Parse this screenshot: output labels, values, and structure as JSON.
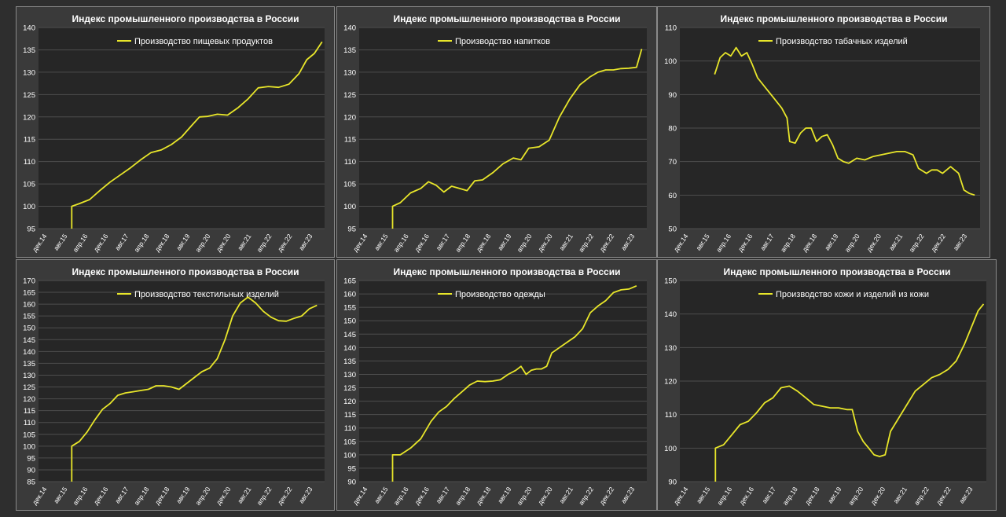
{
  "colors": {
    "page_bg": "#2e2e2e",
    "panel_bg": "#3a3a3a",
    "plot_bg": "#262626",
    "grid": "#4d4d4d",
    "line": "#e8e62a",
    "text": "#ffffff"
  },
  "chart_data": [
    {
      "type": "line",
      "title": "Индекс промышленного производства в России",
      "legend_position": "top-left",
      "grid": true,
      "x_tick_labels": [
        "дек.14",
        "авг.15",
        "апр.16",
        "дек.16",
        "авг.17",
        "апр.18",
        "дек.18",
        "авг.19",
        "апр.20",
        "дек.20",
        "авг.21",
        "апр.22",
        "дек.22",
        "авг.23"
      ],
      "x_range": [
        0,
        112
      ],
      "ylim": [
        95,
        140
      ],
      "y_ticks": [
        95,
        100,
        105,
        110,
        115,
        120,
        125,
        130,
        135,
        140
      ],
      "series": [
        {
          "name": "Производство пищевых продуктов",
          "points": [
            [
              13,
              95
            ],
            [
              13,
              100
            ],
            [
              16,
              100.6
            ],
            [
              20,
              101.5
            ],
            [
              24,
              103.5
            ],
            [
              28,
              105.4
            ],
            [
              32,
              107
            ],
            [
              36,
              108.6
            ],
            [
              40,
              110.4
            ],
            [
              44,
              112
            ],
            [
              48,
              112.6
            ],
            [
              52,
              113.8
            ],
            [
              56,
              115.5
            ],
            [
              60,
              118.1
            ],
            [
              63,
              120
            ],
            [
              66,
              120.1
            ],
            [
              70,
              120.6
            ],
            [
              74,
              120.4
            ],
            [
              78,
              122
            ],
            [
              82,
              124
            ],
            [
              86,
              126.5
            ],
            [
              90,
              126.8
            ],
            [
              94,
              126.6
            ],
            [
              98,
              127.3
            ],
            [
              102,
              129.7
            ],
            [
              105,
              132.8
            ],
            [
              108,
              134.2
            ],
            [
              111,
              136.8
            ]
          ]
        }
      ]
    },
    {
      "type": "line",
      "title": "Индекс промышленного производства в России",
      "legend_position": "top-left",
      "grid": true,
      "x_tick_labels": [
        "дек.14",
        "авг.15",
        "апр.16",
        "дек.16",
        "авг.17",
        "апр.18",
        "дек.18",
        "авг.19",
        "апр.20",
        "дек.20",
        "авг.21",
        "апр.22",
        "дек.22",
        "авг.23"
      ],
      "x_range": [
        0,
        112
      ],
      "ylim": [
        95,
        140
      ],
      "y_ticks": [
        95,
        100,
        105,
        110,
        115,
        120,
        125,
        130,
        135,
        140
      ],
      "series": [
        {
          "name": "Производство напитков",
          "points": [
            [
              13,
              95
            ],
            [
              13,
              100
            ],
            [
              16,
              100.8
            ],
            [
              20,
              103
            ],
            [
              24,
              104
            ],
            [
              27,
              105.5
            ],
            [
              30,
              104.7
            ],
            [
              33,
              103.2
            ],
            [
              36,
              104.5
            ],
            [
              39,
              104
            ],
            [
              42,
              103.5
            ],
            [
              45,
              105.7
            ],
            [
              48,
              105.9
            ],
            [
              52,
              107.5
            ],
            [
              56,
              109.5
            ],
            [
              60,
              110.8
            ],
            [
              63,
              110.4
            ],
            [
              66,
              113
            ],
            [
              70,
              113.3
            ],
            [
              74,
              114.8
            ],
            [
              78,
              120
            ],
            [
              82,
              124
            ],
            [
              86,
              127.2
            ],
            [
              90,
              129
            ],
            [
              93,
              130
            ],
            [
              96,
              130.5
            ],
            [
              99,
              130.5
            ],
            [
              102,
              130.8
            ],
            [
              105,
              130.9
            ],
            [
              108,
              131.1
            ],
            [
              110,
              135.2
            ]
          ]
        }
      ]
    },
    {
      "type": "line",
      "title": "Индекс промышленного производства в России",
      "legend_position": "top-left",
      "grid": true,
      "x_tick_labels": [
        "дек.14",
        "авг.15",
        "апр.16",
        "дек.16",
        "авг.17",
        "апр.18",
        "дек.18",
        "авг.19",
        "апр.20",
        "дек.20",
        "авг.21",
        "апр.22",
        "дек.22",
        "авг.23"
      ],
      "x_range": [
        0,
        112
      ],
      "ylim": [
        50,
        110
      ],
      "y_ticks": [
        50,
        60,
        70,
        80,
        90,
        100,
        110
      ],
      "series": [
        {
          "name": "Производство табачных изделий",
          "points": [
            [
              13,
              96
            ],
            [
              15,
              101
            ],
            [
              17,
              102.5
            ],
            [
              19,
              101.5
            ],
            [
              21,
              104
            ],
            [
              23,
              101.5
            ],
            [
              25,
              102.5
            ],
            [
              27,
              99
            ],
            [
              29,
              95
            ],
            [
              32,
              92
            ],
            [
              35,
              89
            ],
            [
              38,
              86
            ],
            [
              40,
              83
            ],
            [
              41,
              76
            ],
            [
              43,
              75.5
            ],
            [
              45,
              78.5
            ],
            [
              47,
              80
            ],
            [
              49,
              80
            ],
            [
              51,
              76
            ],
            [
              53,
              77.5
            ],
            [
              55,
              78
            ],
            [
              57,
              75
            ],
            [
              59,
              71
            ],
            [
              61,
              70
            ],
            [
              63,
              69.5
            ],
            [
              66,
              71
            ],
            [
              69,
              70.5
            ],
            [
              72,
              71.5
            ],
            [
              75,
              72
            ],
            [
              78,
              72.5
            ],
            [
              81,
              73
            ],
            [
              84,
              73
            ],
            [
              87,
              72
            ],
            [
              89,
              68
            ],
            [
              92,
              66.5
            ],
            [
              94,
              67.5
            ],
            [
              96,
              67.5
            ],
            [
              98,
              66.5
            ],
            [
              101,
              68.5
            ],
            [
              104,
              66.5
            ],
            [
              106,
              61.5
            ],
            [
              108,
              60.5
            ],
            [
              110,
              60
            ]
          ]
        }
      ]
    },
    {
      "type": "line",
      "title": "Индекс промышленного производства в России",
      "legend_position": "top-left",
      "grid": true,
      "x_tick_labels": [
        "дек.14",
        "авг.15",
        "апр.16",
        "дек.16",
        "авг.17",
        "апр.18",
        "дек.18",
        "авг.19",
        "апр.20",
        "дек.20",
        "авг.21",
        "апр.22",
        "дек.22",
        "авг.23"
      ],
      "x_range": [
        0,
        112
      ],
      "ylim": [
        85,
        170
      ],
      "y_ticks": [
        85,
        90,
        95,
        100,
        105,
        110,
        115,
        120,
        125,
        130,
        135,
        140,
        145,
        150,
        155,
        160,
        165,
        170
      ],
      "series": [
        {
          "name": "Производство текстильных изделий",
          "points": [
            [
              13,
              85
            ],
            [
              13,
              100
            ],
            [
              16,
              102
            ],
            [
              19,
              106
            ],
            [
              22,
              111
            ],
            [
              25,
              115.5
            ],
            [
              28,
              118
            ],
            [
              31,
              121.5
            ],
            [
              34,
              122.5
            ],
            [
              37,
              123
            ],
            [
              40,
              123.5
            ],
            [
              43,
              124
            ],
            [
              46,
              125.5
            ],
            [
              49,
              125.5
            ],
            [
              52,
              125
            ],
            [
              55,
              124
            ],
            [
              58,
              126.5
            ],
            [
              61,
              129
            ],
            [
              64,
              131.5
            ],
            [
              67,
              133
            ],
            [
              70,
              137
            ],
            [
              73,
              145
            ],
            [
              76,
              155
            ],
            [
              79,
              160.5
            ],
            [
              82,
              163
            ],
            [
              85,
              160.5
            ],
            [
              88,
              157
            ],
            [
              91,
              154.5
            ],
            [
              94,
              153
            ],
            [
              97,
              152.8
            ],
            [
              100,
              154
            ],
            [
              103,
              155
            ],
            [
              106,
              158
            ],
            [
              109,
              159.5
            ]
          ]
        }
      ]
    },
    {
      "type": "line",
      "title": "Индекс промышленного производства в России",
      "legend_position": "top-left",
      "grid": true,
      "x_tick_labels": [
        "дек.14",
        "авг.15",
        "апр.16",
        "дек.16",
        "авг.17",
        "апр.18",
        "дек.18",
        "авг.19",
        "апр.20",
        "дек.20",
        "авг.21",
        "апр.22",
        "дек.22",
        "авг.23"
      ],
      "x_range": [
        0,
        112
      ],
      "ylim": [
        90,
        165
      ],
      "y_ticks": [
        90,
        95,
        100,
        105,
        110,
        115,
        120,
        125,
        130,
        135,
        140,
        145,
        150,
        155,
        160,
        165
      ],
      "series": [
        {
          "name": "Производство одежды",
          "points": [
            [
              13,
              90
            ],
            [
              13,
              100
            ],
            [
              16,
              100
            ],
            [
              20,
              102.5
            ],
            [
              24,
              106
            ],
            [
              28,
              112.5
            ],
            [
              31,
              116
            ],
            [
              34,
              118
            ],
            [
              37,
              121
            ],
            [
              40,
              123.5
            ],
            [
              43,
              126
            ],
            [
              46,
              127.5
            ],
            [
              49,
              127.3
            ],
            [
              52,
              127.5
            ],
            [
              55,
              128
            ],
            [
              58,
              130
            ],
            [
              61,
              131.5
            ],
            [
              63,
              133
            ],
            [
              65,
              130
            ],
            [
              67,
              131.5
            ],
            [
              69,
              132
            ],
            [
              71,
              132
            ],
            [
              73,
              133
            ],
            [
              75,
              138
            ],
            [
              78,
              140
            ],
            [
              81,
              142
            ],
            [
              84,
              144
            ],
            [
              87,
              147
            ],
            [
              90,
              153
            ],
            [
              93,
              155.5
            ],
            [
              96,
              157.5
            ],
            [
              99,
              160.5
            ],
            [
              102,
              161.5
            ],
            [
              105,
              161.8
            ],
            [
              108,
              163
            ]
          ]
        }
      ]
    },
    {
      "type": "line",
      "title": "Индекс промышленного производства в России",
      "legend_position": "top-left",
      "grid": true,
      "x_tick_labels": [
        "дек.14",
        "авг.15",
        "апр.16",
        "дек.16",
        "авг.17",
        "апр.18",
        "дек.18",
        "авг.19",
        "апр.20",
        "дек.20",
        "авг.21",
        "апр.22",
        "дек.22",
        "авг.23"
      ],
      "x_range": [
        0,
        112
      ],
      "ylim": [
        90,
        150
      ],
      "y_ticks": [
        90,
        100,
        110,
        120,
        130,
        140,
        150
      ],
      "series": [
        {
          "name": "Производство кожи и изделий из кожи",
          "points": [
            [
              13,
              90
            ],
            [
              13,
              100
            ],
            [
              16,
              101
            ],
            [
              19,
              104
            ],
            [
              22,
              107
            ],
            [
              25,
              108
            ],
            [
              28,
              110.5
            ],
            [
              31,
              113.5
            ],
            [
              34,
              115
            ],
            [
              37,
              118
            ],
            [
              40,
              118.5
            ],
            [
              43,
              117
            ],
            [
              46,
              115
            ],
            [
              49,
              113
            ],
            [
              52,
              112.5
            ],
            [
              55,
              112
            ],
            [
              58,
              112
            ],
            [
              61,
              111.5
            ],
            [
              63,
              111.5
            ],
            [
              65,
              105
            ],
            [
              67,
              102
            ],
            [
              69,
              100
            ],
            [
              71,
              98
            ],
            [
              73,
              97.5
            ],
            [
              75,
              98
            ],
            [
              77,
              105
            ],
            [
              80,
              109
            ],
            [
              83,
              113
            ],
            [
              86,
              117
            ],
            [
              89,
              119
            ],
            [
              92,
              121
            ],
            [
              95,
              122
            ],
            [
              98,
              123.5
            ],
            [
              101,
              126
            ],
            [
              104,
              131
            ],
            [
              107,
              137
            ],
            [
              109,
              141
            ],
            [
              111,
              143
            ]
          ]
        }
      ]
    }
  ]
}
